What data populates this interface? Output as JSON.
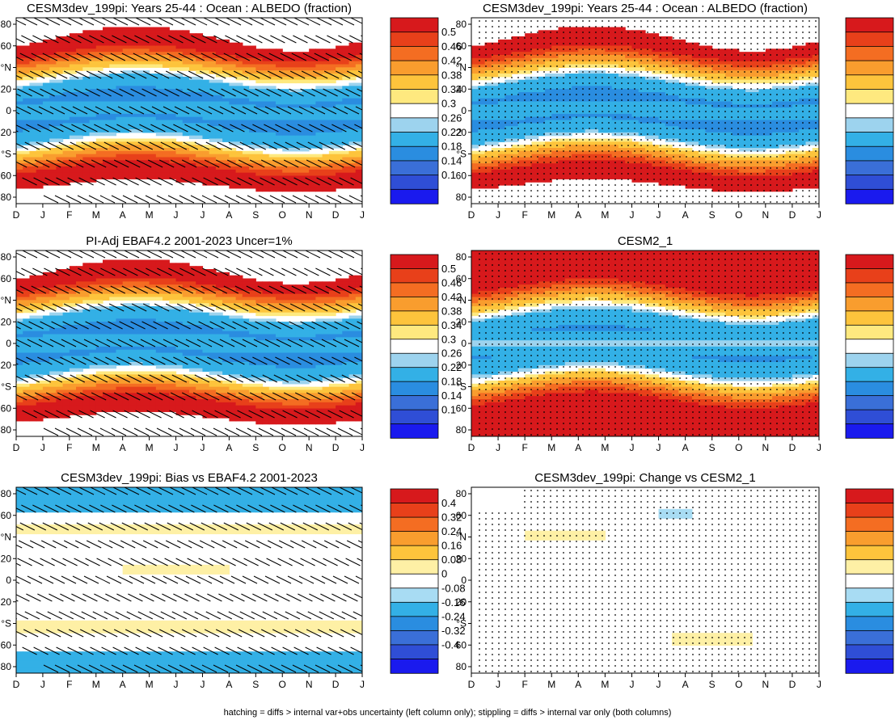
{
  "footer": "hatching = diffs > internal var+obs uncertainty (left column only); stippling = diffs > internal var only (both columns)",
  "chart_data": [
    {
      "id": "p1",
      "type": "heatmap",
      "title": "CESM3dev_199pi: Years 25-44 : Ocean : ALBEDO (fraction)",
      "kind": "albedo",
      "overlay": "hatch",
      "pattern": "model",
      "x_ticks": [
        "D",
        "J",
        "F",
        "M",
        "A",
        "M",
        "J",
        "J",
        "A",
        "S",
        "O",
        "N",
        "D",
        "J"
      ],
      "y_ticks": [
        "80",
        "60",
        "°N",
        "20",
        "0",
        "20",
        "°S",
        "60",
        "80"
      ],
      "colorbar": [
        "0.5",
        "0.46",
        "0.42",
        "0.38",
        "0.34",
        "0.3",
        "0.26",
        "0.22",
        "0.18",
        "0.14",
        "0.1"
      ]
    },
    {
      "id": "p2",
      "type": "heatmap",
      "title": "CESM3dev_199pi: Years 25-44 : Ocean : ALBEDO (fraction)",
      "kind": "albedo",
      "overlay": "stipple",
      "pattern": "model",
      "x_ticks": [
        "D",
        "J",
        "F",
        "M",
        "A",
        "M",
        "J",
        "J",
        "A",
        "S",
        "O",
        "N",
        "D",
        "J"
      ],
      "y_ticks": [
        "80",
        "60",
        "°N",
        "20",
        "0",
        "20",
        "°S",
        "60",
        "80"
      ],
      "colorbar": [
        "0.5",
        "0.46",
        "0.42",
        "0.38",
        "0.34",
        "0.3",
        "0.26",
        "0.22",
        "0.18",
        "0.14",
        "0.1"
      ]
    },
    {
      "id": "p3",
      "type": "heatmap",
      "title": "PI-Adj EBAF4.2 2001-2023 Uncer=1%",
      "kind": "albedo",
      "overlay": "hatch",
      "pattern": "obs",
      "x_ticks": [
        "D",
        "J",
        "F",
        "M",
        "A",
        "M",
        "J",
        "J",
        "A",
        "S",
        "O",
        "N",
        "D",
        "J"
      ],
      "y_ticks": [
        "80",
        "60",
        "°N",
        "20",
        "0",
        "20",
        "°S",
        "60",
        "80"
      ],
      "colorbar": [
        "0.5",
        "0.46",
        "0.42",
        "0.38",
        "0.34",
        "0.3",
        "0.26",
        "0.22",
        "0.18",
        "0.14",
        "0.1"
      ]
    },
    {
      "id": "p4",
      "type": "heatmap",
      "title": "CESM2_1",
      "kind": "albedo",
      "overlay": "stipple",
      "pattern": "full",
      "x_ticks": [
        "D",
        "J",
        "F",
        "M",
        "A",
        "M",
        "J",
        "J",
        "A",
        "S",
        "O",
        "N",
        "D",
        "J"
      ],
      "y_ticks": [
        "80",
        "60",
        "°N",
        "20",
        "0",
        "20",
        "°S",
        "60",
        "80"
      ],
      "colorbar": [
        "0.5",
        "0.46",
        "0.42",
        "0.38",
        "0.34",
        "0.3",
        "0.26",
        "0.22",
        "0.18",
        "0.14",
        "0.1"
      ]
    },
    {
      "id": "p5",
      "type": "heatmap",
      "title": "CESM3dev_199pi: Bias vs EBAF4.2 2001-2023",
      "kind": "diff",
      "overlay": "hatch",
      "pattern": "bias",
      "x_ticks": [
        "D",
        "J",
        "F",
        "M",
        "A",
        "M",
        "J",
        "J",
        "A",
        "S",
        "O",
        "N",
        "D",
        "J"
      ],
      "y_ticks": [
        "80",
        "60",
        "°N",
        "20",
        "0",
        "20",
        "°S",
        "60",
        "80"
      ],
      "colorbar": [
        "0.4",
        "0.32",
        "0.24",
        "0.16",
        "0.08",
        "0",
        "-0.08",
        "-0.16",
        "-0.24",
        "-0.32",
        "-0.4"
      ]
    },
    {
      "id": "p6",
      "type": "heatmap",
      "title": "CESM3dev_199pi: Change vs CESM2_1",
      "kind": "diff",
      "overlay": "stipple",
      "pattern": "change",
      "x_ticks": [
        "D",
        "J",
        "F",
        "M",
        "A",
        "M",
        "J",
        "J",
        "A",
        "S",
        "O",
        "N",
        "D",
        "J"
      ],
      "y_ticks": [
        "80",
        "60",
        "°N",
        "20",
        "0",
        "20",
        "°S",
        "60",
        "80"
      ],
      "colorbar": [
        "0.4",
        "0.32",
        "0.24",
        "0.16",
        "0.08",
        "0",
        "-0.08",
        "-0.16",
        "-0.24",
        "-0.32",
        "-0.4"
      ]
    }
  ]
}
